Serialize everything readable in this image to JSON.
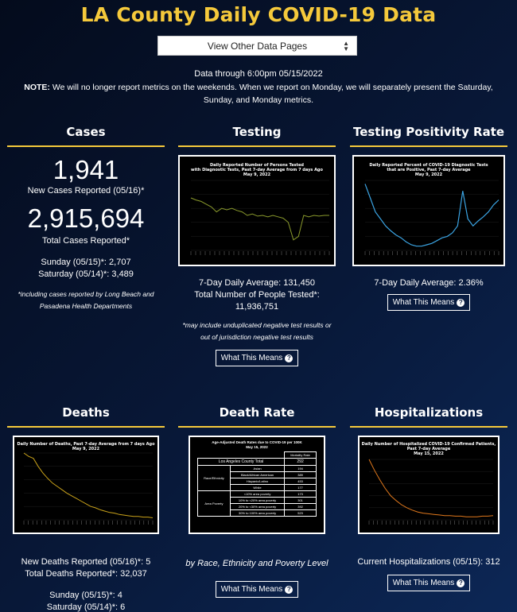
{
  "page_title": "LA County Daily COVID-19 Data",
  "nav_select": {
    "label": "View Other Data Pages"
  },
  "data_through": "Data through 6:00pm 05/15/2022",
  "note": {
    "label": "NOTE:",
    "text": " We will no longer report metrics on the weekends. When we report on Monday, we will separately present the Saturday, Sunday, and Monday metrics."
  },
  "cases": {
    "title": "Cases",
    "new_value": "1,941",
    "new_label": "New Cases Reported (05/16)*",
    "total_value": "2,915,694",
    "total_label": "Total Cases Reported*",
    "sunday": "Sunday (05/15)*: 2,707",
    "saturday": "Saturday (05/14)*: 3,489",
    "footnote": "*including cases reported by Long Beach and Pasadena Health Departments"
  },
  "testing": {
    "title": "Testing",
    "chart_title_1": "Daily Reported Number of Persons Tested",
    "chart_title_2": "with Diagnostic Tests, Past 7-day Average from 7 days Ago",
    "chart_title_3": "May 9, 2022",
    "avg": "7-Day Daily Average: 131,450",
    "total_label": "Total Number of People Tested*:",
    "total_value": "11,936,751",
    "footnote": "*may include unduplicated negative test results or out of jurisdiction negative test results",
    "button": "What This Means"
  },
  "positivity": {
    "title": "Testing Positivity Rate",
    "chart_title_1": "Daily Reported Percent of COVID-19 Diagnostic Tests",
    "chart_title_2": "that are Positive, Past 7-day Average",
    "chart_title_3": "May 9, 2022",
    "avg": "7-Day Daily Average: 2.36%",
    "button": "What This Means"
  },
  "deaths": {
    "title": "Deaths",
    "chart_title_1": "Daily Number of Deaths, Past 7-day Average from 7 days Ago",
    "chart_title_2": "May 9, 2022",
    "new": "New Deaths Reported (05/16)*: 5",
    "total": "Total Deaths Reported*: 32,037",
    "sunday": "Sunday (05/15)*: 4",
    "saturday": "Saturday (05/14)*: 6"
  },
  "death_rate": {
    "title": "Death Rate",
    "chart_title_1": "Age-Adjusted Death Rates due to COVID-19 per 100K",
    "chart_title_2": "May 15, 2022",
    "col_header": "Mortality Rate",
    "county_label": "Los Angeles County Total",
    "county_value": "292",
    "group_race": "Race/Ethnicity",
    "group_poverty": "Area Poverty",
    "rows": [
      {
        "label": "Asian",
        "value": "194"
      },
      {
        "label": "Black/African American",
        "value": "389"
      },
      {
        "label": "Hispanic/Latino",
        "value": "453"
      },
      {
        "label": "White",
        "value": "177"
      },
      {
        "label": "<10% area poverty",
        "value": "173"
      },
      {
        "label": "10% to <20% area poverty",
        "value": "301"
      },
      {
        "label": "20% to <30% area poverty",
        "value": "392"
      },
      {
        "label": "30% to 100% area poverty",
        "value": "523"
      }
    ],
    "subtitle": "by Race, Ethnicity and Poverty Level",
    "button": "What This Means"
  },
  "hosp": {
    "title": "Hospitalizations",
    "chart_title_1": "Daily Number of Hospitalized COVID-19 Confirmed Patients,",
    "chart_title_2": "Past 7-day Average",
    "chart_title_3": "May 15, 2022",
    "current": "Current Hospitalizations (05/15): 312",
    "button": "What This Means"
  },
  "colors": {
    "title_yellow": "#f5c93b",
    "testing_line": "#8a9a2c",
    "positivity_line": "#3ba4e3",
    "deaths_line": "#c9a21a",
    "hosp_line": "#e0781c"
  },
  "icons": {
    "select_arrow": "up-down-caret-icon",
    "button_help": "question-circle-icon"
  },
  "chart_data": [
    {
      "type": "line",
      "title": "Daily Reported Number of Persons Tested with Diagnostic Tests, Past 7-day Average from 7 days Ago May 9, 2022",
      "series": [
        {
          "values": [
            0.75,
            0.72,
            0.7,
            0.66,
            0.62,
            0.55,
            0.6,
            0.58,
            0.6,
            0.57,
            0.55,
            0.5,
            0.52,
            0.49,
            0.5,
            0.48,
            0.5,
            0.48,
            0.46,
            0.4,
            0.15,
            0.2,
            0.5,
            0.48,
            0.5,
            0.49,
            0.5,
            0.5
          ]
        }
      ]
    },
    {
      "type": "line",
      "title": "Daily Reported Percent of COVID-19 Diagnostic Tests that are Positive, Past 7-day Average May 9, 2022",
      "series": [
        {
          "values": [
            0.95,
            0.75,
            0.55,
            0.45,
            0.35,
            0.28,
            0.22,
            0.18,
            0.12,
            0.08,
            0.06,
            0.06,
            0.08,
            0.1,
            0.14,
            0.18,
            0.2,
            0.25,
            0.35,
            0.85,
            0.45,
            0.35,
            0.42,
            0.48,
            0.55,
            0.65,
            0.72
          ]
        }
      ]
    },
    {
      "type": "line",
      "title": "Daily Number of Deaths, Past 7-day Average from 7 days Ago May 9, 2022",
      "series": [
        {
          "values": [
            1.0,
            0.95,
            0.92,
            0.8,
            0.7,
            0.62,
            0.55,
            0.5,
            0.45,
            0.4,
            0.36,
            0.32,
            0.28,
            0.24,
            0.2,
            0.18,
            0.15,
            0.13,
            0.11,
            0.1,
            0.08,
            0.07,
            0.06,
            0.05,
            0.05,
            0.04,
            0.04,
            0.03
          ]
        }
      ]
    },
    {
      "type": "line",
      "title": "Daily Number of Hospitalized COVID-19 Confirmed Patients, Past 7-day Average May 15, 2022",
      "series": [
        {
          "values": [
            1.0,
            0.82,
            0.66,
            0.52,
            0.4,
            0.32,
            0.25,
            0.2,
            0.16,
            0.13,
            0.11,
            0.1,
            0.09,
            0.08,
            0.07,
            0.07,
            0.06,
            0.06,
            0.05,
            0.05,
            0.05,
            0.06,
            0.06,
            0.07
          ]
        }
      ]
    }
  ]
}
